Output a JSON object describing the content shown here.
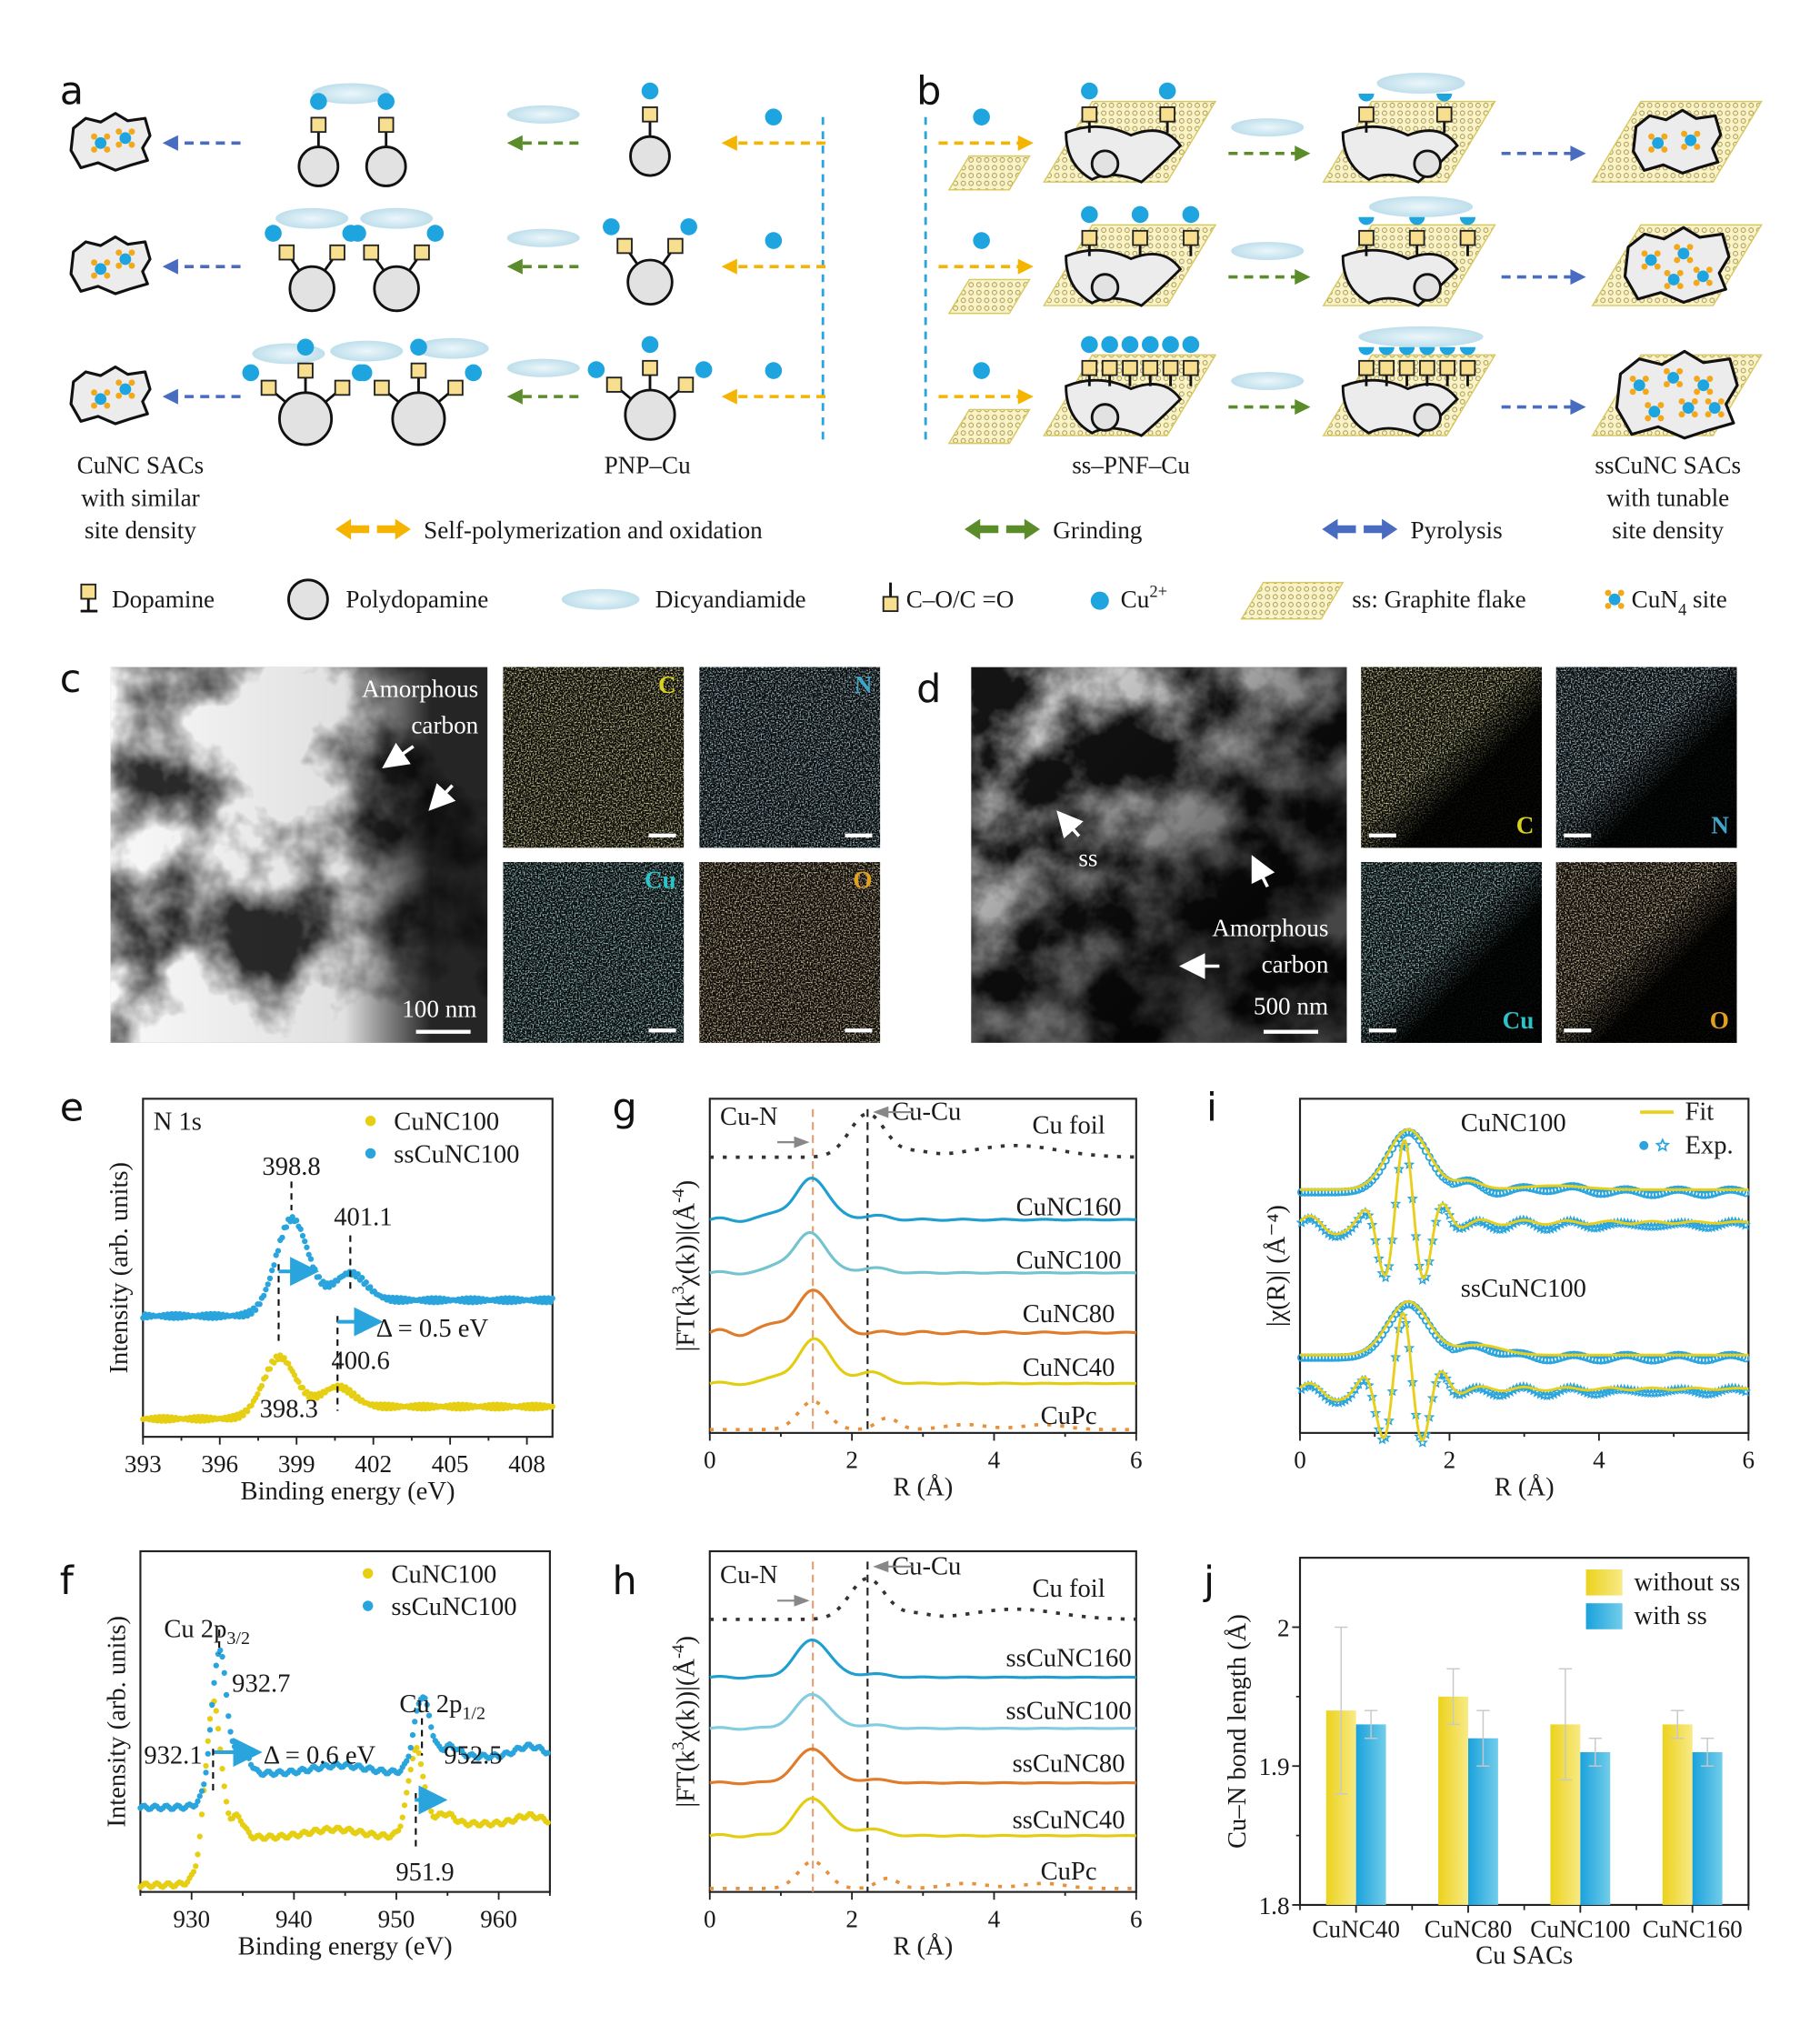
{
  "panel_labels": {
    "a": "a",
    "b": "b",
    "c": "c",
    "d": "d",
    "e": "e",
    "f": "f",
    "g": "g",
    "h": "h",
    "i": "i",
    "j": "j"
  },
  "schematic": {
    "left_caption": [
      "CuNC SACs",
      "with similar",
      "site density"
    ],
    "mid_caption": "PNP–Cu",
    "ss_caption": "ss–PNF–Cu",
    "right_caption": [
      "ssCuNC SACs",
      "with tunable",
      "site density"
    ],
    "process_legend": [
      {
        "label": "Self-polymerization and oxidation",
        "color": "#f4b400"
      },
      {
        "label": "Grinding",
        "color": "#5b8c2a"
      },
      {
        "label": "Pyrolysis",
        "color": "#4a6cc0"
      }
    ],
    "component_legend": {
      "dopamine": "Dopamine",
      "polydopamine": "Polydopamine",
      "dicyandiamide": "Dicyandiamide",
      "co": "C–O/C =O",
      "cu_base": "Cu",
      "cu_sup": "2+",
      "graphite": "ss: Graphite flake",
      "cun4_base": "CuN",
      "cun4_sub": "4",
      "cun4_suffix": " site"
    },
    "colors": {
      "cu": "#1ea4de",
      "dopamine": "#f7df8f",
      "pda": "#e2e2e2",
      "dicy": "#cfe7f1",
      "cun4_n": "#f3a81c"
    }
  },
  "micrographs": {
    "c": {
      "annotation": [
        "Amorphous",
        "carbon"
      ],
      "scale_bar": "100 nm",
      "maps": [
        {
          "element": "C",
          "color": "#d8d21c"
        },
        {
          "element": "N",
          "color": "#3fa6c8"
        },
        {
          "element": "Cu",
          "color": "#2cc3c8"
        },
        {
          "element": "O",
          "color": "#e0a020"
        }
      ]
    },
    "d": {
      "annotation": [
        "Amorphous",
        "carbon"
      ],
      "ss_label": "ss",
      "scale_bar": "500 nm",
      "maps": [
        {
          "element": "C",
          "color": "#d8d21c"
        },
        {
          "element": "N",
          "color": "#3fa6c8"
        },
        {
          "element": "Cu",
          "color": "#2cc3c8"
        },
        {
          "element": "O",
          "color": "#e0a020"
        }
      ]
    }
  },
  "chart_data": [
    {
      "id": "e",
      "type": "scatter",
      "title": "N 1s",
      "xlabel": "Binding energy (eV)",
      "ylabel": "Intensity (arb. units)",
      "xlim": [
        393,
        409
      ],
      "ylim": [
        -0.2,
        4.5
      ],
      "xticks": [
        393,
        396,
        399,
        402,
        405,
        408
      ],
      "legend": "top-right",
      "series": [
        {
          "name": "CuNC100",
          "color": "#e6cf12",
          "baseline": 0.05,
          "peaks": [
            {
              "c": 398.3,
              "h": 0.78,
              "w": 0.62
            },
            {
              "c": 400.6,
              "h": 0.28,
              "w": 0.6
            }
          ],
          "steps": [
            {
              "c": 398.4,
              "h": 0.17,
              "w": 0.5
            }
          ]
        },
        {
          "name": "ssCuNC100",
          "color": "#2aa4dc",
          "baseline": 1.48,
          "peaks": [
            {
              "c": 398.8,
              "h": 1.25,
              "w": 0.62
            },
            {
              "c": 401.1,
              "h": 0.38,
              "w": 0.6
            }
          ],
          "steps": [
            {
              "c": 398.9,
              "h": 0.22,
              "w": 0.5
            }
          ]
        }
      ],
      "annotations": [
        {
          "text": "398.8",
          "x": 398.8,
          "y": 3.55
        },
        {
          "text": "401.1",
          "x": 401.6,
          "y": 2.85
        },
        {
          "text": "400.6",
          "x": 401.5,
          "y": 0.85
        },
        {
          "text": "398.3",
          "x": 398.7,
          "y": 0.18
        },
        {
          "text": "Δ = 0.5 eV",
          "x": 404.3,
          "y": 1.3
        }
      ],
      "dashed_lines": [
        {
          "x": 398.8,
          "from": 2.95,
          "to": 3.35
        },
        {
          "x": 401.1,
          "from": 1.8,
          "to": 2.6
        },
        {
          "x": 398.3,
          "from": 1.1,
          "to": 2.2
        },
        {
          "x": 400.6,
          "from": 0.16,
          "to": 1.48
        }
      ],
      "shift_arrows": [
        {
          "from": 398.3,
          "to": 399.6,
          "y": 2.1
        },
        {
          "from": 400.6,
          "to": 402.1,
          "y": 1.4
        }
      ]
    },
    {
      "id": "f",
      "type": "scatter",
      "xlabel": "Binding energy (eV)",
      "ylabel": "Intensity (arb. units)",
      "xlim": [
        925,
        965
      ],
      "ylim": [
        0,
        5
      ],
      "xticks": [
        930,
        940,
        950,
        960
      ],
      "legend": "top-right",
      "series": [
        {
          "name": "CuNC100",
          "color": "#e6cf12",
          "baseline": 0.1,
          "peaks": [
            {
              "c": 932.1,
              "h": 2.1,
              "w": 0.75
            },
            {
              "c": 934.5,
              "h": 0.3,
              "w": 0.6
            },
            {
              "c": 944,
              "h": 0.12,
              "w": 2.5
            },
            {
              "c": 951.9,
              "h": 1.15,
              "w": 0.75
            },
            {
              "c": 954.8,
              "h": 0.15,
              "w": 0.8
            },
            {
              "c": 963,
              "h": 0.12,
              "w": 1.3
            }
          ],
          "steps": [
            {
              "c": 931.2,
              "h": 0.7,
              "w": 0.6
            },
            {
              "c": 951.4,
              "h": 0.2,
              "w": 0.6
            }
          ]
        },
        {
          "name": "ssCuNC100",
          "color": "#2aa4dc",
          "baseline": 1.24,
          "peaks": [
            {
              "c": 932.7,
              "h": 1.9,
              "w": 0.72
            },
            {
              "c": 935,
              "h": 0.38,
              "w": 0.6
            },
            {
              "c": 944.5,
              "h": 0.12,
              "w": 2.5
            },
            {
              "c": 952.5,
              "h": 0.95,
              "w": 0.75
            },
            {
              "c": 955.3,
              "h": 0.15,
              "w": 0.8
            },
            {
              "c": 963,
              "h": 0.15,
              "w": 1.3
            }
          ],
          "steps": [
            {
              "c": 931.8,
              "h": 0.5,
              "w": 0.6
            },
            {
              "c": 951.9,
              "h": 0.25,
              "w": 0.6
            }
          ]
        }
      ],
      "annotations": [
        {
          "text": "932.7",
          "x": 936.8,
          "y": 3.05
        },
        {
          "text": "932.1",
          "x": 928.2,
          "y": 2.0
        },
        {
          "text": "Δ = 0.6 eV",
          "x": 942.5,
          "y": 2.0
        },
        {
          "text": "952.5",
          "x": 957.5,
          "y": 2.0
        },
        {
          "text": "951.9",
          "x": 952.8,
          "y": 0.28
        }
      ],
      "peak_labels": [
        {
          "base": "Cu 2p",
          "sub": "3/2",
          "x": 931.5,
          "y": 3.85
        },
        {
          "base": "Cu 2p",
          "sub": "1/2",
          "x": 954.5,
          "y": 2.75
        }
      ],
      "dashed_lines": [
        {
          "x": 932.7,
          "from": 3.5,
          "to": 3.85
        },
        {
          "x": 932.1,
          "from": 1.45,
          "to": 2.1
        },
        {
          "x": 952.5,
          "from": 2.0,
          "to": 2.55
        },
        {
          "x": 951.9,
          "from": 0.6,
          "to": 1.45
        }
      ],
      "shift_arrows": [
        {
          "from": 932.2,
          "to": 936.2,
          "y": 2.05
        },
        {
          "from": 951.8,
          "to": 954.3,
          "y": 1.35
        }
      ]
    },
    {
      "id": "g",
      "type": "line",
      "xlabel": "R (Å)",
      "ylabel": "|FT(k³χ(k))|(Å⁻⁴)",
      "ylabel_parts": [
        "|FT(k",
        "3",
        "χ(k))|(Å",
        "-4",
        ")"
      ],
      "xlim": [
        0,
        6
      ],
      "ylim": [
        0,
        10
      ],
      "xticks": [
        0,
        2,
        4,
        6
      ],
      "reference_lines": [
        {
          "label": "Cu-N",
          "x": 1.45,
          "color": "#e8a070"
        },
        {
          "label": "Cu-Cu",
          "x": 2.22,
          "color": "#222222"
        }
      ],
      "series": [
        {
          "name": "Cu foil",
          "color": "#333333",
          "dash": "dot",
          "baseline": 8.25,
          "label_y": 9.2,
          "peaks": [
            {
              "c": 2.22,
              "h": 1.3,
              "w": 0.25
            },
            {
              "c": 2.9,
              "h": 0.15,
              "w": 0.2
            },
            {
              "c": 4.3,
              "h": 0.35,
              "w": 0.6
            }
          ]
        },
        {
          "name": "CuNC160",
          "color": "#1e9fd0",
          "baseline": 6.38,
          "label_y": 6.75,
          "peaks": [
            {
              "c": 1.45,
              "h": 1.25,
              "w": 0.22
            },
            {
              "c": 0.95,
              "h": 0.2,
              "w": 0.15
            },
            {
              "c": 2.3,
              "h": 0.12,
              "w": 0.2
            }
          ],
          "ripple": 0.06
        },
        {
          "name": "CuNC100",
          "color": "#74c4d0",
          "baseline": 4.79,
          "label_y": 5.15,
          "peaks": [
            {
              "c": 1.42,
              "h": 1.2,
              "w": 0.22
            },
            {
              "c": 0.95,
              "h": 0.2,
              "w": 0.15
            },
            {
              "c": 2.3,
              "h": 0.15,
              "w": 0.2
            }
          ],
          "ripple": 0.04
        },
        {
          "name": "CuNC80",
          "color": "#e07b2a",
          "baseline": 3.0,
          "label_y": 3.55,
          "peaks": [
            {
              "c": 1.48,
              "h": 1.3,
              "w": 0.22
            },
            {
              "c": 0.95,
              "h": 0.3,
              "w": 0.15
            }
          ],
          "ripple": 0.1
        },
        {
          "name": "CuNC40",
          "color": "#e2cd10",
          "baseline": 1.48,
          "label_y": 1.95,
          "peaks": [
            {
              "c": 1.48,
              "h": 1.35,
              "w": 0.22
            },
            {
              "c": 0.95,
              "h": 0.2,
              "w": 0.15
            },
            {
              "c": 2.25,
              "h": 0.35,
              "w": 0.2
            }
          ],
          "ripple": 0.04
        },
        {
          "name": "CuPc",
          "color": "#e8903a",
          "dash": "dot",
          "baseline": 0.1,
          "label_y": 0.5,
          "peaks": [
            {
              "c": 1.45,
              "h": 0.85,
              "w": 0.2
            },
            {
              "c": 2.5,
              "h": 0.35,
              "w": 0.15
            },
            {
              "c": 3.6,
              "h": 0.15,
              "w": 0.3
            },
            {
              "c": 4.7,
              "h": 0.15,
              "w": 0.3
            }
          ]
        }
      ],
      "annotations": [
        {
          "text": "Cu-N",
          "x": 0.55,
          "y": 9.45
        },
        {
          "text": "Cu-Cu",
          "x": 3.05,
          "y": 9.6
        }
      ]
    },
    {
      "id": "h",
      "type": "line",
      "xlabel": "R (Å)",
      "ylabel": "|FT(k³χ(k))|(Å⁻⁴)",
      "ylabel_parts": [
        "|FT(k",
        "3",
        "χ(k))|(Å",
        "-4",
        ")"
      ],
      "xlim": [
        0,
        6
      ],
      "ylim": [
        0,
        10
      ],
      "xticks": [
        0,
        2,
        4,
        6
      ],
      "reference_lines": [
        {
          "label": "Cu-N",
          "x": 1.45,
          "color": "#e8a070"
        },
        {
          "label": "Cu-Cu",
          "x": 2.22,
          "color": "#222222"
        }
      ],
      "series": [
        {
          "name": "Cu foil",
          "color": "#333333",
          "dash": "dot",
          "baseline": 8.0,
          "label_y": 8.9,
          "peaks": [
            {
              "c": 2.22,
              "h": 1.2,
              "w": 0.25
            },
            {
              "c": 2.9,
              "h": 0.15,
              "w": 0.2
            },
            {
              "c": 4.3,
              "h": 0.3,
              "w": 0.6
            }
          ]
        },
        {
          "name": "ssCuNC160",
          "color": "#1e9fd0",
          "baseline": 6.3,
          "label_y": 6.85,
          "peaks": [
            {
              "c": 1.45,
              "h": 1.1,
              "w": 0.24
            },
            {
              "c": 2.3,
              "h": 0.1,
              "w": 0.2
            }
          ],
          "ripple": 0.03
        },
        {
          "name": "ssCuNC100",
          "color": "#84cde0",
          "baseline": 4.8,
          "label_y": 5.3,
          "peaks": [
            {
              "c": 1.45,
              "h": 1.0,
              "w": 0.24
            },
            {
              "c": 2.3,
              "h": 0.1,
              "w": 0.2
            }
          ],
          "ripple": 0.03
        },
        {
          "name": "ssCuNC80",
          "color": "#e07b2a",
          "baseline": 3.2,
          "label_y": 3.75,
          "peaks": [
            {
              "c": 1.45,
              "h": 1.0,
              "w": 0.24
            },
            {
              "c": 2.3,
              "h": 0.1,
              "w": 0.2
            }
          ],
          "ripple": 0.03
        },
        {
          "name": "ssCuNC40",
          "color": "#e2cd10",
          "baseline": 1.65,
          "label_y": 2.1,
          "peaks": [
            {
              "c": 1.45,
              "h": 1.1,
              "w": 0.24
            },
            {
              "c": 2.25,
              "h": 0.2,
              "w": 0.2
            }
          ],
          "ripple": 0.04
        },
        {
          "name": "CuPc",
          "color": "#e8903a",
          "dash": "dot",
          "baseline": 0.1,
          "label_y": 0.6,
          "peaks": [
            {
              "c": 1.45,
              "h": 0.8,
              "w": 0.2
            },
            {
              "c": 2.5,
              "h": 0.3,
              "w": 0.15
            },
            {
              "c": 3.6,
              "h": 0.15,
              "w": 0.3
            },
            {
              "c": 4.7,
              "h": 0.15,
              "w": 0.3
            }
          ]
        }
      ],
      "annotations": [
        {
          "text": "Cu-N",
          "x": 0.55,
          "y": 9.3
        },
        {
          "text": "Cu-Cu",
          "x": 3.05,
          "y": 9.55
        }
      ]
    },
    {
      "id": "i",
      "type": "line",
      "xlabel": "R (Å)",
      "ylabel": "|χ(R)| (Å⁻⁴)",
      "ylabel_parts": [
        "|χ(R)| (Å",
        "-4",
        ")"
      ],
      "xlim": [
        0,
        6
      ],
      "ylim": [
        0,
        10
      ],
      "xticks": [
        0,
        2,
        4,
        6
      ],
      "legend": "top-right",
      "legend_entries": {
        "fit": "Fit",
        "exp": "Exp."
      },
      "fit_color": "#e8d01a",
      "exp_color": "#2aa4dc",
      "series": [
        {
          "name": "CuNC100 magnitude",
          "label": "CuNC100",
          "baseline": 7.28,
          "peaks": [
            {
              "c": 1.45,
              "h": 1.8,
              "w": 0.27
            },
            {
              "c": 2.25,
              "h": 0.25,
              "w": 0.18
            },
            {
              "c": 3.4,
              "h": 0.12,
              "w": 0.4
            }
          ]
        },
        {
          "name": "CuNC100 real part",
          "baseline": 6.3,
          "osc": {
            "a": 2.4,
            "c": 1.4,
            "w": 0.3,
            "period": 0.56
          },
          "ripple": 0.18
        },
        {
          "name": "ssCuNC100 magnitude",
          "label": "ssCuNC100",
          "baseline": 2.33,
          "peaks": [
            {
              "c": 1.45,
              "h": 1.6,
              "w": 0.27
            },
            {
              "c": 2.4,
              "h": 0.3,
              "w": 0.3
            }
          ]
        },
        {
          "name": "ssCuNC100 real part",
          "baseline": 1.32,
          "osc": {
            "a": 2.2,
            "c": 1.38,
            "w": 0.3,
            "period": 0.56
          },
          "ripple": 0.15
        }
      ]
    },
    {
      "id": "j",
      "type": "bar",
      "xlabel": "Cu SACs",
      "ylabel": "Cu–N bond length (Å)",
      "ylim": [
        1.8,
        2.05
      ],
      "yticks": [
        1.8,
        1.9,
        2.0
      ],
      "categories": [
        "CuNC40",
        "CuNC80",
        "CuNC100",
        "CuNC160"
      ],
      "legend": "top-right",
      "series": [
        {
          "name": "without ss",
          "color": "#f0d824",
          "values": [
            1.94,
            1.95,
            1.93,
            1.93
          ],
          "errors": [
            0.06,
            0.02,
            0.04,
            0.01
          ]
        },
        {
          "name": "with ss",
          "color": "#2aaee0",
          "values": [
            1.93,
            1.92,
            1.91,
            1.91
          ],
          "errors": [
            0.01,
            0.02,
            0.01,
            0.01
          ]
        }
      ]
    }
  ]
}
